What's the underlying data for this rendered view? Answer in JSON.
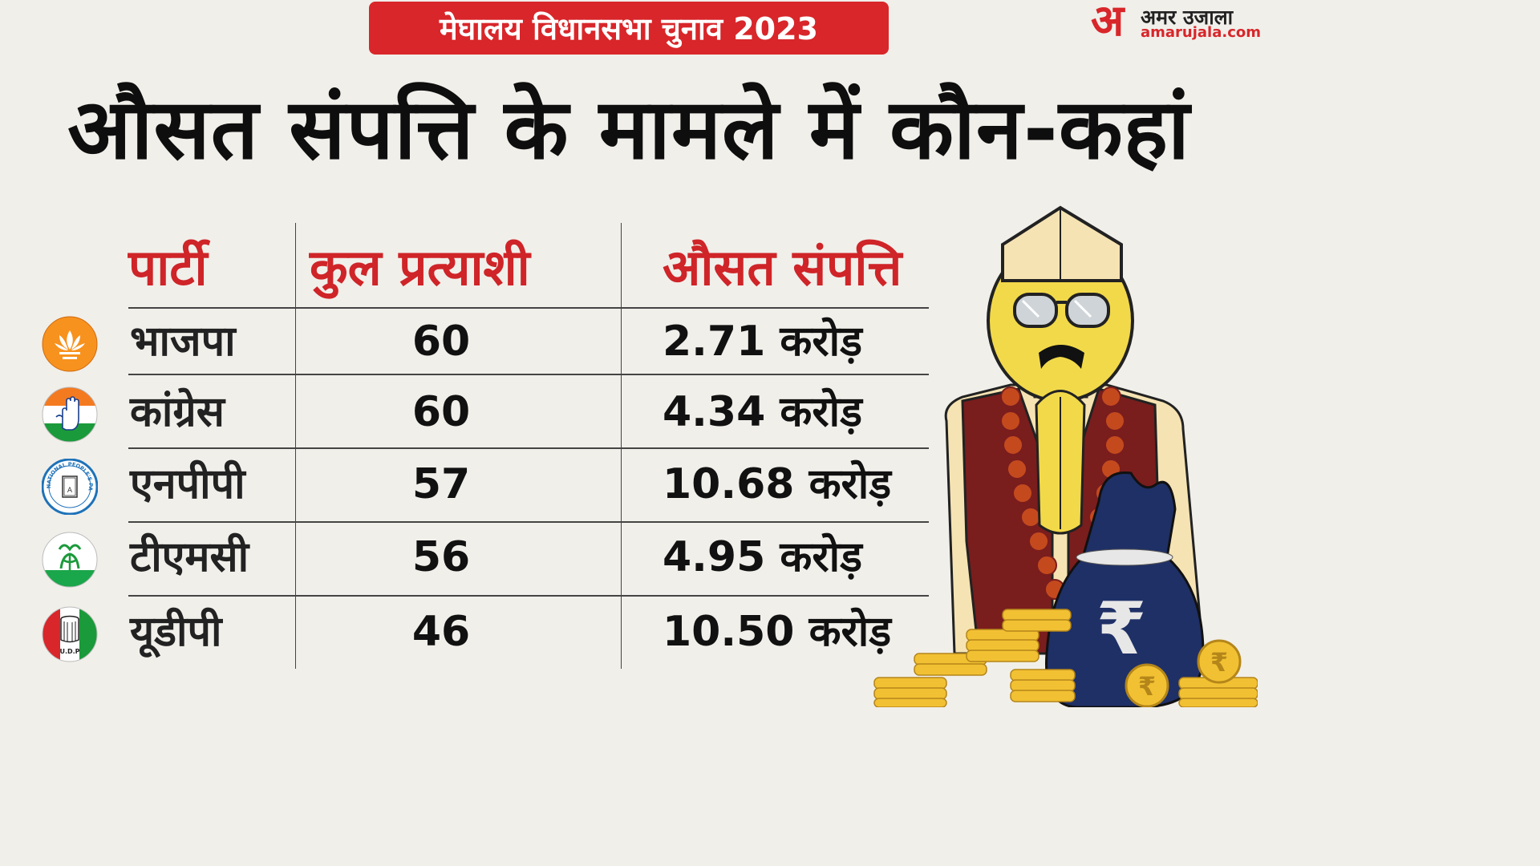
{
  "tag": "मेघालय विधानसभा चुनाव 2023",
  "brand": {
    "mark": "अ",
    "name": "अमर उजाला",
    "url": "amarujala.com"
  },
  "headline": "औसत संपत्ति के मामले में कौन-कहां",
  "table": {
    "headers": [
      "पार्टी",
      "कुल प्रत्याशी",
      "औसत संपत्ति"
    ],
    "rows": [
      {
        "party": "भाजपा",
        "candidates": "60",
        "assets": "2.71 करोड़",
        "symbol": "lotus-icon"
      },
      {
        "party": "कांग्रेस",
        "candidates": "60",
        "assets": "4.34 करोड़",
        "symbol": "hand-icon"
      },
      {
        "party": "एनपीपी",
        "candidates": "57",
        "assets": "10.68 करोड़",
        "symbol": "book-icon",
        "symbol_text": "NATIONAL PEOPLE'S PARTY (NPP)"
      },
      {
        "party": "टीएमसी",
        "candidates": "56",
        "assets": "4.95 करोड़",
        "symbol": "flower-grass-icon"
      },
      {
        "party": "यूडीपी",
        "candidates": "46",
        "assets": "10.50 करोड़",
        "symbol": "drum-icon",
        "symbol_text": "U.D.P"
      }
    ]
  },
  "illustration": {
    "bag_symbol": "₹",
    "coin_symbol": "₹"
  },
  "colors": {
    "accent": "#d8262a",
    "background": "#f1efea"
  }
}
